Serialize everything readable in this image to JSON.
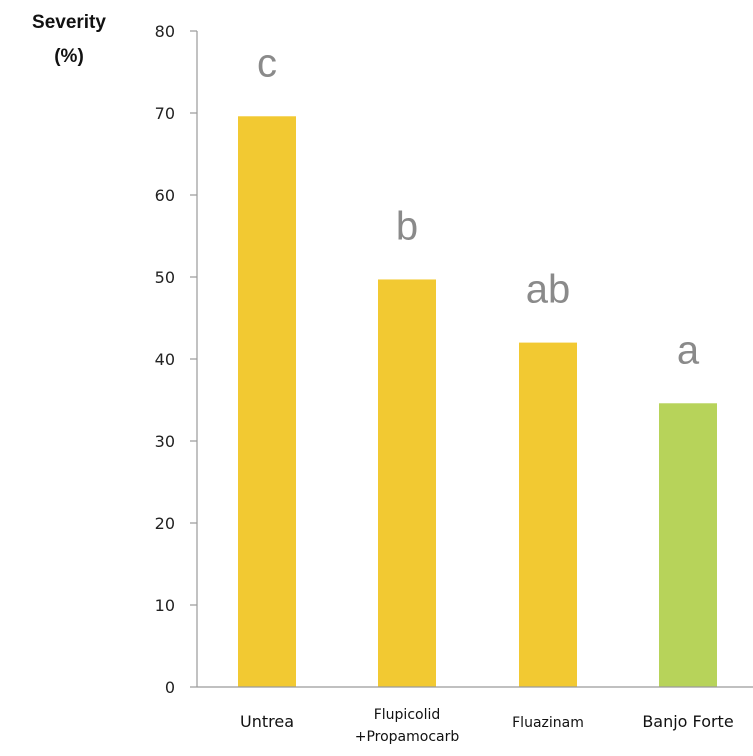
{
  "chart_data": {
    "type": "bar",
    "ylabel": [
      "Severity",
      "(%)"
    ],
    "ylim": [
      0,
      80
    ],
    "yticks": [
      0,
      10,
      20,
      30,
      40,
      50,
      60,
      70,
      80
    ],
    "categories": [
      [
        "Untrea"
      ],
      [
        "Flupicolid",
        "+Propamocarb"
      ],
      [
        "Fluazinam"
      ],
      [
        "Banjo Forte"
      ]
    ],
    "values": [
      69.6,
      49.7,
      42.0,
      34.6
    ],
    "letters": [
      "c",
      "b",
      "ab",
      "a"
    ],
    "colors": [
      "#F2C932",
      "#F2C932",
      "#F2C932",
      "#B7D35A"
    ],
    "grid": false
  }
}
